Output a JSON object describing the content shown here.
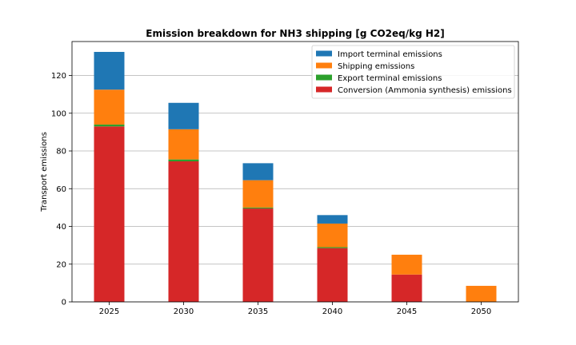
{
  "chart_data": {
    "type": "bar",
    "stacked": true,
    "title": "Emission breakdown for NH3 shipping [g CO2eq/kg H2]",
    "xlabel": "",
    "ylabel": "Transport emissions",
    "categories": [
      "2025",
      "2030",
      "2035",
      "2040",
      "2045",
      "2050"
    ],
    "ylim": [
      0,
      138
    ],
    "yticks": [
      0,
      20,
      40,
      60,
      80,
      100,
      120
    ],
    "grid": "horizontal",
    "legend_position": "top-right",
    "series": [
      {
        "name": "Conversion (Ammonia synthesis) emissions",
        "color": "#d62728",
        "values": [
          93,
          74.5,
          49.5,
          28.5,
          14.5,
          0
        ]
      },
      {
        "name": "Export terminal emissions",
        "color": "#2ca02c",
        "values": [
          1,
          1,
          0.5,
          0.5,
          0,
          0
        ]
      },
      {
        "name": "Shipping emissions",
        "color": "#ff7f0e",
        "values": [
          18.5,
          16,
          14.5,
          12.5,
          10.5,
          8.5
        ]
      },
      {
        "name": "Import terminal emissions",
        "color": "#1f77b4",
        "values": [
          20,
          14,
          9,
          4.5,
          0,
          0
        ]
      }
    ],
    "legend_order": [
      "Import terminal emissions",
      "Shipping emissions",
      "Export terminal emissions",
      "Conversion (Ammonia synthesis) emissions"
    ]
  }
}
